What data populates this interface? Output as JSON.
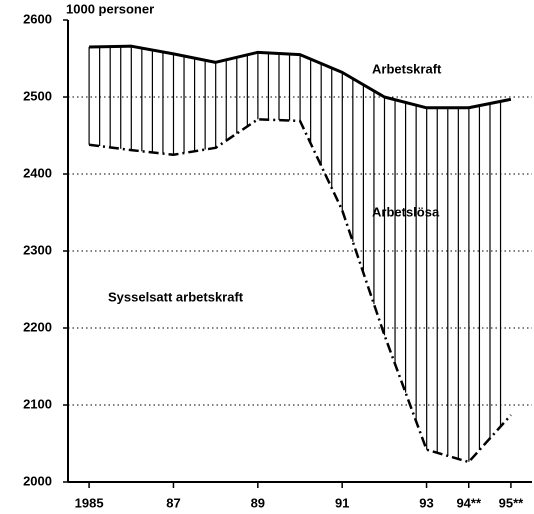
{
  "chart_data": {
    "type": "line",
    "y_label": "1000 personer",
    "x": [
      1985,
      1986,
      1987,
      1988,
      1989,
      1990,
      1991,
      1992,
      1993,
      1994,
      1995
    ],
    "series": [
      {
        "name": "Arbetskraft",
        "color": "#000000",
        "style": "solid",
        "values": [
          2565,
          2566,
          2556,
          2545,
          2558,
          2555,
          2532,
          2500,
          2486,
          2486,
          2497
        ]
      },
      {
        "name": "Sysselsatt arbetskraft",
        "color": "#000000",
        "style": "dashdot",
        "values": [
          2438,
          2431,
          2425,
          2434,
          2471,
          2469,
          2353,
          2191,
          2042,
          2026,
          2087
        ]
      }
    ],
    "annotations": [
      "Arbetslösa"
    ],
    "xlim": [
      1984.5,
      1995.5
    ],
    "xticks": [
      1985,
      {
        "value": 1987,
        "label": "87"
      },
      {
        "value": 1989,
        "label": "89"
      },
      {
        "value": 1991,
        "label": "91"
      },
      {
        "value": 1993,
        "label": "93"
      },
      {
        "value": 1994,
        "label": "94**"
      },
      {
        "value": 1995,
        "label": "95**"
      }
    ],
    "ylim": [
      2000,
      2600
    ],
    "yticks": [
      2000,
      2100,
      2200,
      2300,
      2400,
      2500,
      2600
    ],
    "grid": true,
    "hatch": true
  }
}
